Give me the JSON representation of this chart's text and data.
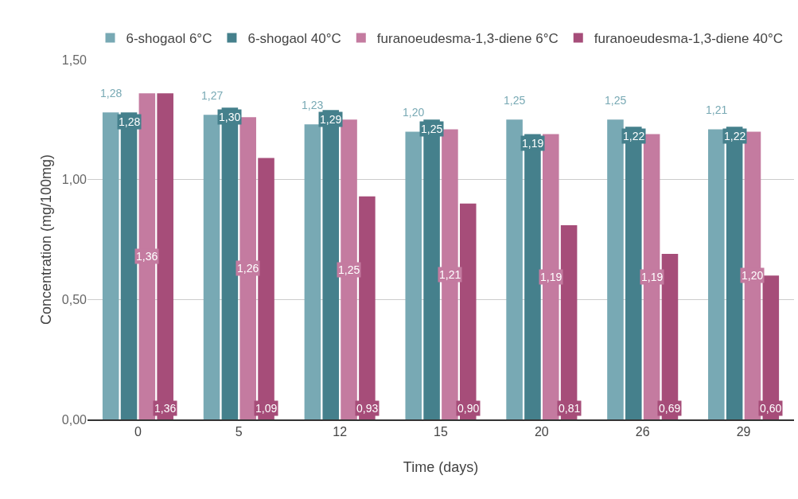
{
  "chart_data": {
    "type": "bar",
    "xlabel": "Time (days)",
    "ylabel": "Concentration (mg/100mg)",
    "categories": [
      "0",
      "5",
      "12",
      "15",
      "20",
      "26",
      "29"
    ],
    "series": [
      {
        "name": "6-shogaol 6°C",
        "color": "#78a9b4",
        "values": [
          1.28,
          1.27,
          1.23,
          1.2,
          1.25,
          1.25,
          1.21
        ],
        "value_labels": [
          "1,28",
          "1,27",
          "1,23",
          "1,20",
          "1,25",
          "1,25",
          "1,21"
        ]
      },
      {
        "name": "6-shogaol 40°C",
        "color": "#45808c",
        "values": [
          1.28,
          1.3,
          1.29,
          1.25,
          1.19,
          1.22,
          1.22
        ],
        "value_labels": [
          "1,28",
          "1,30",
          "1,29",
          "1,25",
          "1,19",
          "1,22",
          "1,22"
        ]
      },
      {
        "name": "furanoeudesma-1,3-diene 6°C",
        "color": "#c47ba0",
        "values": [
          1.36,
          1.26,
          1.25,
          1.21,
          1.19,
          1.19,
          1.2
        ],
        "value_labels": [
          "1,36",
          "1,26",
          "1,25",
          "1,21",
          "1,19",
          "1,19",
          "1,20"
        ]
      },
      {
        "name": "furanoeudesma-1,3-diene 40°C",
        "color": "#a64d79",
        "values": [
          1.36,
          1.09,
          0.93,
          0.9,
          0.81,
          0.69,
          0.6
        ],
        "value_labels": [
          "1,36",
          "1,09",
          "0,93",
          "0,90",
          "0,81",
          "0,69",
          "0,60"
        ]
      }
    ],
    "ylim": [
      0,
      1.5
    ],
    "yticks": [
      {
        "value": 0,
        "label": "0,00"
      },
      {
        "value": 0.5,
        "label": "0,50"
      },
      {
        "value": 1,
        "label": "1,00"
      },
      {
        "value": 1.5,
        "label": "1,50"
      }
    ],
    "grid": "y",
    "legend": "top"
  }
}
